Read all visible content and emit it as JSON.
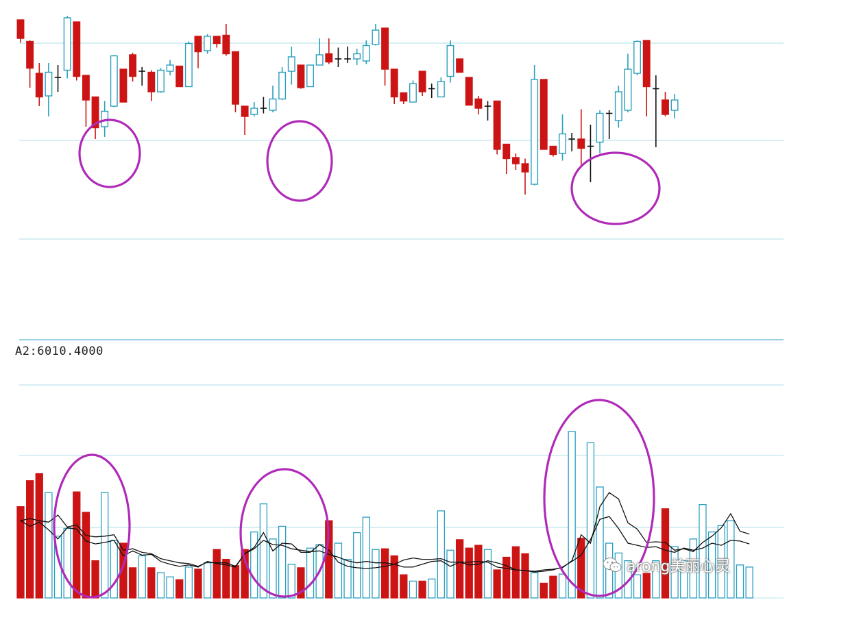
{
  "indicator_label": "A2:6010.4000",
  "watermark": {
    "text": "arong美丽心灵",
    "icon": "wechat-icon"
  },
  "colors": {
    "up": "#2a9fbe",
    "down": "#cc1414",
    "wick_dark": "#111111",
    "highlight": "#b02ab8",
    "grid": "#bfe3ec",
    "ma_line": "#111111"
  },
  "chart_data": [
    {
      "type": "candlestick",
      "title": "",
      "grid": true,
      "price_unit": "relative",
      "candles": [
        {
          "o": 97.0,
          "c": 88.0,
          "h": 97.0,
          "l": 86.0
        },
        {
          "o": 86.5,
          "c": 73.5,
          "h": 87.0,
          "l": 64.0
        },
        {
          "o": 71.0,
          "c": 59.5,
          "h": 76.0,
          "l": 55.0
        },
        {
          "o": 60.0,
          "c": 71.5,
          "h": 76.0,
          "l": 50.0
        },
        {
          "o": 69.0,
          "c": 69.0,
          "h": 75.0,
          "l": 62.0
        },
        {
          "o": 72.5,
          "c": 98.0,
          "h": 99.0,
          "l": 68.5
        },
        {
          "o": 96.0,
          "c": 69.5,
          "h": 96.0,
          "l": 67.5
        },
        {
          "o": 70.0,
          "c": 58.0,
          "h": 70.0,
          "l": 45.0
        },
        {
          "o": 59.5,
          "c": 44.5,
          "h": 59.5,
          "l": 39.0
        },
        {
          "o": 45.0,
          "c": 52.5,
          "h": 57.5,
          "l": 40.0
        },
        {
          "o": 55.0,
          "c": 79.5,
          "h": 80.0,
          "l": 54.5
        },
        {
          "o": 73.0,
          "c": 57.0,
          "h": 73.0,
          "l": 57.0
        },
        {
          "o": 80.0,
          "c": 69.5,
          "h": 81.0,
          "l": 67.0
        },
        {
          "o": 72.0,
          "c": 72.0,
          "h": 74.0,
          "l": 65.0
        },
        {
          "o": 71.5,
          "c": 62.0,
          "h": 72.5,
          "l": 57.5
        },
        {
          "o": 62.0,
          "c": 72.5,
          "h": 73.5,
          "l": 61.5
        },
        {
          "o": 72.0,
          "c": 75.0,
          "h": 77.5,
          "l": 70.0
        },
        {
          "o": 74.5,
          "c": 64.5,
          "h": 74.5,
          "l": 64.5
        },
        {
          "o": 64.5,
          "c": 85.5,
          "h": 86.5,
          "l": 64.5
        },
        {
          "o": 89.0,
          "c": 81.5,
          "h": 89.0,
          "l": 73.5
        },
        {
          "o": 82.0,
          "c": 89.0,
          "h": 90.0,
          "l": 80.5
        },
        {
          "o": 89.0,
          "c": 85.5,
          "h": 89.0,
          "l": 83.5
        },
        {
          "o": 89.5,
          "c": 80.5,
          "h": 95.0,
          "l": 79.5
        },
        {
          "o": 81.5,
          "c": 56.0,
          "h": 81.5,
          "l": 52.0
        },
        {
          "o": 55.0,
          "c": 50.0,
          "h": 55.0,
          "l": 41.0
        },
        {
          "o": 51.0,
          "c": 54.0,
          "h": 57.0,
          "l": 50.0
        },
        {
          "o": 54.0,
          "c": 54.0,
          "h": 59.5,
          "l": 51.5
        },
        {
          "o": 53.0,
          "c": 58.5,
          "h": 65.0,
          "l": 52.0
        },
        {
          "o": 58.5,
          "c": 71.5,
          "h": 74.0,
          "l": 58.0
        },
        {
          "o": 72.0,
          "c": 79.0,
          "h": 84.0,
          "l": 65.5
        },
        {
          "o": 75.0,
          "c": 64.0,
          "h": 75.0,
          "l": 63.5
        },
        {
          "o": 64.5,
          "c": 75.0,
          "h": 75.0,
          "l": 64.5
        },
        {
          "o": 75.0,
          "c": 80.0,
          "h": 88.0,
          "l": 75.0
        },
        {
          "o": 80.5,
          "c": 76.5,
          "h": 88.0,
          "l": 75.5
        },
        {
          "o": 78.0,
          "c": 78.0,
          "h": 83.5,
          "l": 74.0
        },
        {
          "o": 78.0,
          "c": 78.0,
          "h": 84.0,
          "l": 76.0
        },
        {
          "o": 78.0,
          "c": 80.5,
          "h": 83.0,
          "l": 75.0
        },
        {
          "o": 77.0,
          "c": 84.5,
          "h": 87.0,
          "l": 75.5
        },
        {
          "o": 85.0,
          "c": 92.0,
          "h": 95.0,
          "l": 84.5
        },
        {
          "o": 93.0,
          "c": 73.0,
          "h": 93.0,
          "l": 65.0
        },
        {
          "o": 73.0,
          "c": 59.5,
          "h": 73.0,
          "l": 56.0
        },
        {
          "o": 61.5,
          "c": 57.5,
          "h": 61.5,
          "l": 56.0
        },
        {
          "o": 57.0,
          "c": 66.0,
          "h": 67.5,
          "l": 57.0
        },
        {
          "o": 72.0,
          "c": 62.0,
          "h": 72.0,
          "l": 60.0
        },
        {
          "o": 63.5,
          "c": 63.5,
          "h": 66.0,
          "l": 59.0
        },
        {
          "o": 59.5,
          "c": 67.0,
          "h": 69.0,
          "l": 59.5
        },
        {
          "o": 69.5,
          "c": 84.5,
          "h": 87.0,
          "l": 66.5
        },
        {
          "o": 78.0,
          "c": 71.5,
          "h": 78.0,
          "l": 71.5
        },
        {
          "o": 69.0,
          "c": 55.5,
          "h": 69.0,
          "l": 55.5
        },
        {
          "o": 58.5,
          "c": 54.0,
          "h": 60.0,
          "l": 51.0
        },
        {
          "o": 55.0,
          "c": 55.0,
          "h": 57.5,
          "l": 48.0
        },
        {
          "o": 57.5,
          "c": 34.0,
          "h": 57.5,
          "l": 31.5
        },
        {
          "o": 36.5,
          "c": 29.5,
          "h": 36.5,
          "l": 22.0
        },
        {
          "o": 30.0,
          "c": 27.0,
          "h": 32.0,
          "l": 24.0
        },
        {
          "o": 27.0,
          "c": 23.0,
          "h": 29.5,
          "l": 12.0
        },
        {
          "o": 17.0,
          "c": 68.0,
          "h": 75.0,
          "l": 16.5
        },
        {
          "o": 68.0,
          "c": 34.0,
          "h": 68.0,
          "l": 34.0
        },
        {
          "o": 35.5,
          "c": 31.5,
          "h": 35.5,
          "l": 30.5
        },
        {
          "o": 32.0,
          "c": 41.5,
          "h": 51.0,
          "l": 28.5
        },
        {
          "o": 39.0,
          "c": 39.0,
          "h": 42.0,
          "l": 33.0
        },
        {
          "o": 39.0,
          "c": 34.5,
          "h": 53.5,
          "l": 26.0
        },
        {
          "o": 35.5,
          "c": 35.5,
          "h": 46.0,
          "l": 18.0
        },
        {
          "o": 37.5,
          "c": 51.5,
          "h": 53.0,
          "l": 32.0
        },
        {
          "o": 51.5,
          "c": 51.5,
          "h": 53.0,
          "l": 39.0
        },
        {
          "o": 48.0,
          "c": 62.0,
          "h": 65.0,
          "l": 44.5
        },
        {
          "o": 53.0,
          "c": 73.0,
          "h": 80.5,
          "l": 52.0
        },
        {
          "o": 71.0,
          "c": 86.5,
          "h": 87.0,
          "l": 70.0
        },
        {
          "o": 87.0,
          "c": 64.5,
          "h": 87.0,
          "l": 50.0
        },
        {
          "o": 63.5,
          "c": 63.5,
          "h": 70.0,
          "l": 35.0
        },
        {
          "o": 58.0,
          "c": 51.0,
          "h": 62.0,
          "l": 50.0
        },
        {
          "o": 53.0,
          "c": 58.0,
          "h": 61.0,
          "l": 49.0
        }
      ]
    },
    {
      "type": "bar",
      "title": "",
      "indicator": "A2:6010.4000",
      "series": [
        {
          "values": [
            130,
            167,
            177,
            150,
            88,
            99,
            151,
            122,
            53,
            150,
            82,
            78,
            43,
            60,
            43,
            36,
            30,
            26,
            44,
            41,
            50,
            69,
            55,
            46,
            69,
            94,
            134,
            84,
            102,
            48,
            43,
            71,
            76,
            110,
            78,
            55,
            93,
            115,
            69,
            70,
            60,
            33,
            24,
            24,
            27,
            124,
            68,
            83,
            71,
            75,
            69,
            40,
            58,
            73,
            63,
            36,
            21,
            31,
            34,
            237,
            85,
            221,
            158,
            78,
            64,
            53,
            33,
            35,
            53,
            127,
            73,
            53,
            84,
            133,
            94,
            103,
            110,
            47,
            44
          ]
        },
        {
          "values": [
            110,
            113,
            110,
            108,
            118,
            101,
            104,
            89,
            87,
            88,
            90,
            68,
            70,
            65,
            63,
            56,
            53,
            50,
            49,
            45,
            51,
            50,
            50,
            45,
            63,
            70,
            82,
            76,
            75,
            70,
            68,
            66,
            67,
            62,
            58,
            53,
            50,
            52,
            50,
            50,
            48,
            44,
            44,
            48,
            52,
            53,
            45,
            51,
            51,
            52,
            51,
            44,
            42,
            40,
            39,
            38,
            40,
            41,
            43,
            53,
            90,
            78,
            130,
            150,
            141,
            107,
            98,
            79,
            80,
            79,
            68,
            70,
            66,
            79,
            88,
            100,
            120,
            95,
            91
          ]
        },
        {
          "values": [
            110,
            102,
            108,
            97,
            84,
            100,
            98,
            81,
            77,
            79,
            82,
            60,
            67,
            61,
            62,
            52,
            48,
            45,
            47,
            44,
            52,
            49,
            47,
            44,
            63,
            72,
            93,
            67,
            78,
            77,
            65,
            65,
            76,
            68,
            51,
            45,
            43,
            42,
            43,
            45,
            48,
            54,
            57,
            55,
            55,
            56,
            51,
            51,
            47,
            48,
            53,
            50,
            46,
            40,
            39,
            37,
            38,
            40,
            44,
            52,
            61,
            83,
            112,
            116,
            99,
            78,
            75,
            72,
            73,
            68,
            65,
            71,
            68,
            71,
            78,
            75,
            82,
            81,
            77
          ]
        }
      ],
      "ma_series_count": 2
    }
  ]
}
